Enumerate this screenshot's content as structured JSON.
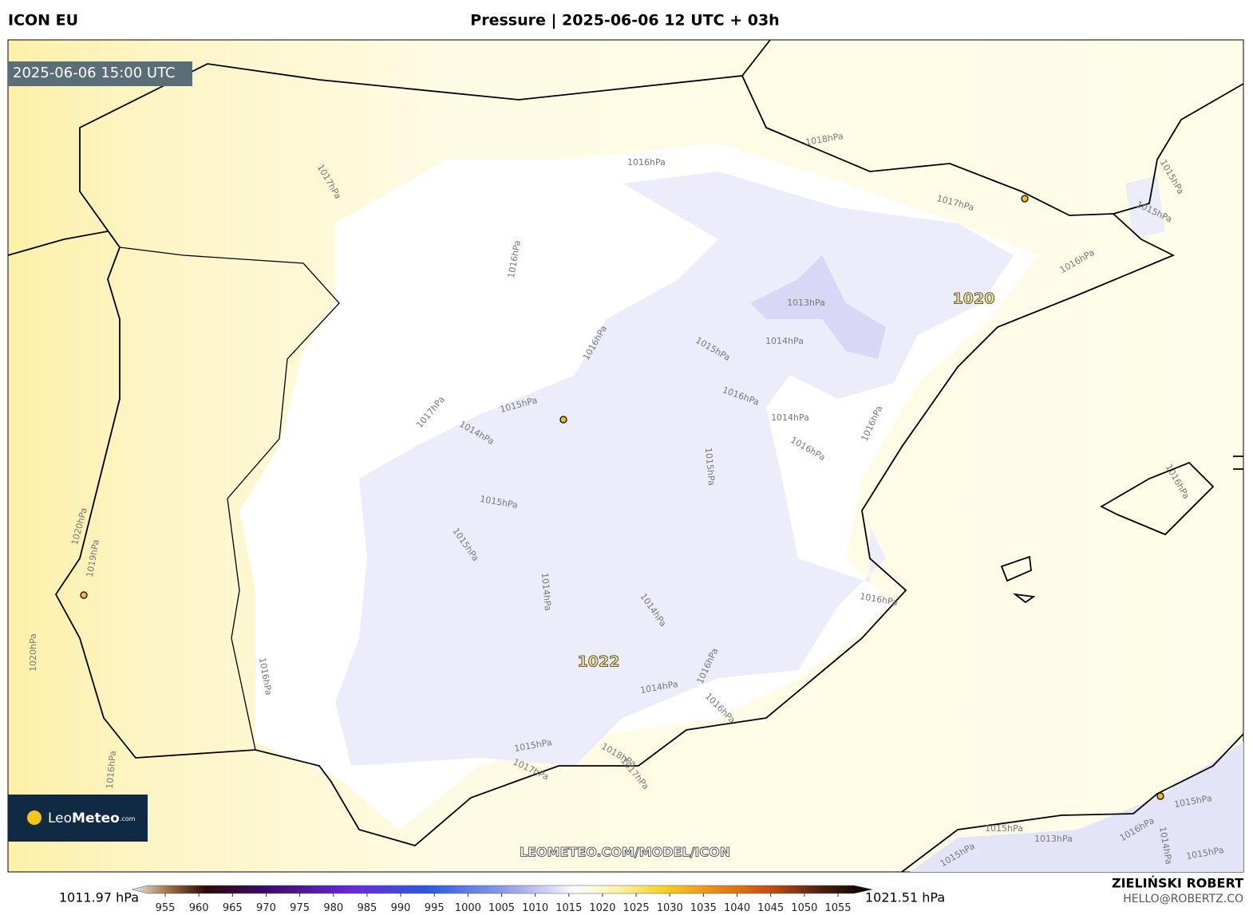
{
  "header": {
    "model": "ICON EU",
    "title": "Pressure | 2025-06-06 12 UTC + 03h"
  },
  "map": {
    "valid_time": "2025-06-06 15:00 UTC",
    "contour_labels": [
      "1018hPa",
      "1016hPa",
      "1017hPa",
      "1015hPa",
      "1017hPa",
      "1015hPa",
      "1016hPa",
      "1016hPa",
      "1013hPa",
      "1014hPa",
      "1015hPa",
      "1016hPa",
      "1016hPa",
      "1015hPa",
      "1017hPa",
      "1014hPa",
      "1016hPa",
      "1014hPa",
      "1016hPa",
      "1015hPa",
      "1016hPa",
      "1015hPa",
      "1020hPa",
      "1015hPa",
      "1019hPa",
      "1014hPa",
      "1016hPa",
      "1014hPa",
      "1020hPa",
      "1016hPa",
      "1016hPa",
      "1014hPa",
      "1016hPa",
      "1015hPa",
      "1018hPa",
      "1017hPa",
      "1017hPa",
      "1016hPa",
      "1015hPa",
      "1016hPa",
      "1015hPa",
      "1014hPa",
      "1013hPa",
      "1015hPa",
      "1015hPa"
    ],
    "pressure_centers": [
      "1020",
      "1022"
    ],
    "watermark": "LEOMETEO.COM/MODEL/ICON",
    "logo": {
      "name": "Leo",
      "name_bold": "Meteo",
      "suffix": ".com"
    }
  },
  "colorbar": {
    "min_label": "1011.97 hPa",
    "max_label": "1021.51 hPa",
    "ticks": [
      955,
      960,
      965,
      970,
      975,
      980,
      985,
      990,
      995,
      1000,
      1005,
      1010,
      1015,
      1020,
      1025,
      1030,
      1035,
      1040,
      1045,
      1050,
      1055
    ]
  },
  "credits": {
    "author": "ZIELIŃSKI ROBERT",
    "contact": "HELLO@ROBERTZ.CO"
  }
}
